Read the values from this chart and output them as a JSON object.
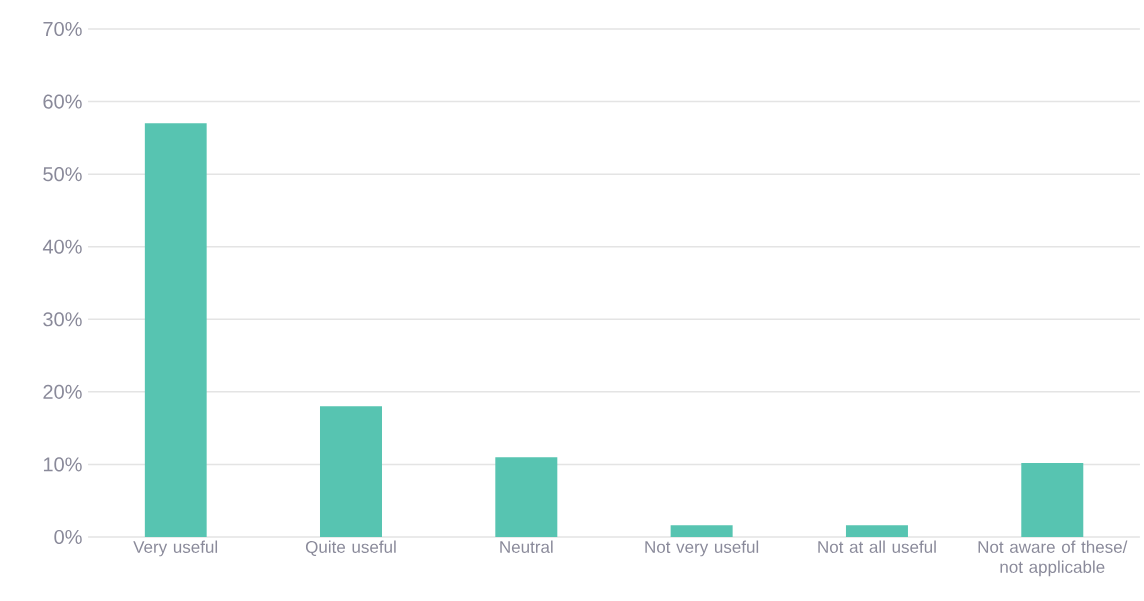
{
  "chart_data": {
    "type": "bar",
    "categories": [
      "Very useful",
      "Quite useful",
      "Neutral",
      "Not very useful",
      "Not at all useful",
      "Not aware of these/ not applicable"
    ],
    "values": [
      57,
      18,
      11,
      1.6,
      1.6,
      10.2
    ],
    "color": "#57c4b1",
    "ylim": [
      0,
      70
    ],
    "yticks": [
      {
        "value": 0,
        "label": "0%"
      },
      {
        "value": 10,
        "label": "10%"
      },
      {
        "value": 20,
        "label": "20%"
      },
      {
        "value": 30,
        "label": "30%"
      },
      {
        "value": 40,
        "label": "40%"
      },
      {
        "value": 50,
        "label": "50%"
      },
      {
        "value": 60,
        "label": "60%"
      },
      {
        "value": 70,
        "label": "70%"
      }
    ],
    "grid": "y"
  }
}
